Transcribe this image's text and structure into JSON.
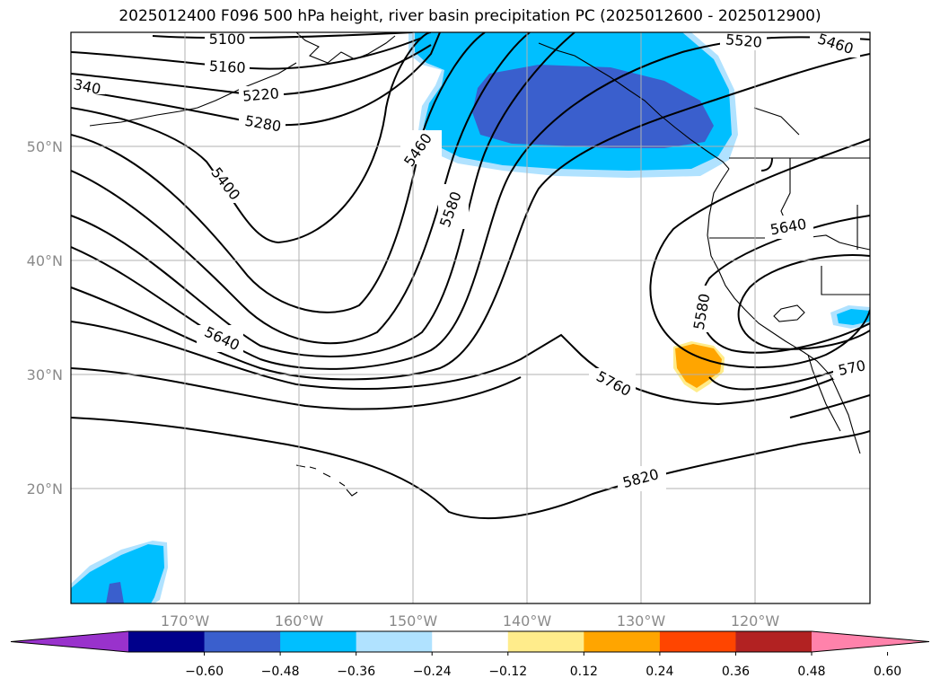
{
  "title": "2025012400 F096 500 hPa height, river basin precipitation PC (2025012600 - 2025012900)",
  "lat_labels": [
    "20°N",
    "30°N",
    "40°N",
    "50°N"
  ],
  "lon_labels": [
    "170°W",
    "160°W",
    "150°W",
    "140°W",
    "130°W",
    "120°W"
  ],
  "contour_labels": [
    "5100",
    "5160",
    "5220",
    "5280",
    "340",
    "5400",
    "5460",
    "5460",
    "5520",
    "5580",
    "5580",
    "5640",
    "5640",
    "5760",
    "5820",
    "570"
  ],
  "colorbar": {
    "ticks": [
      "−0.60",
      "−0.48",
      "−0.36",
      "−0.24",
      "−0.12",
      "0.12",
      "0.24",
      "0.36",
      "0.48",
      "0.60"
    ],
    "colors": [
      "#9932cc",
      "#00008b",
      "#3a5fcd",
      "#00bfff",
      "#b0e2ff",
      "#ffffff",
      "#ffec8b",
      "#ffa500",
      "#ff4500",
      "#b22222",
      "#ff82ab"
    ]
  }
}
